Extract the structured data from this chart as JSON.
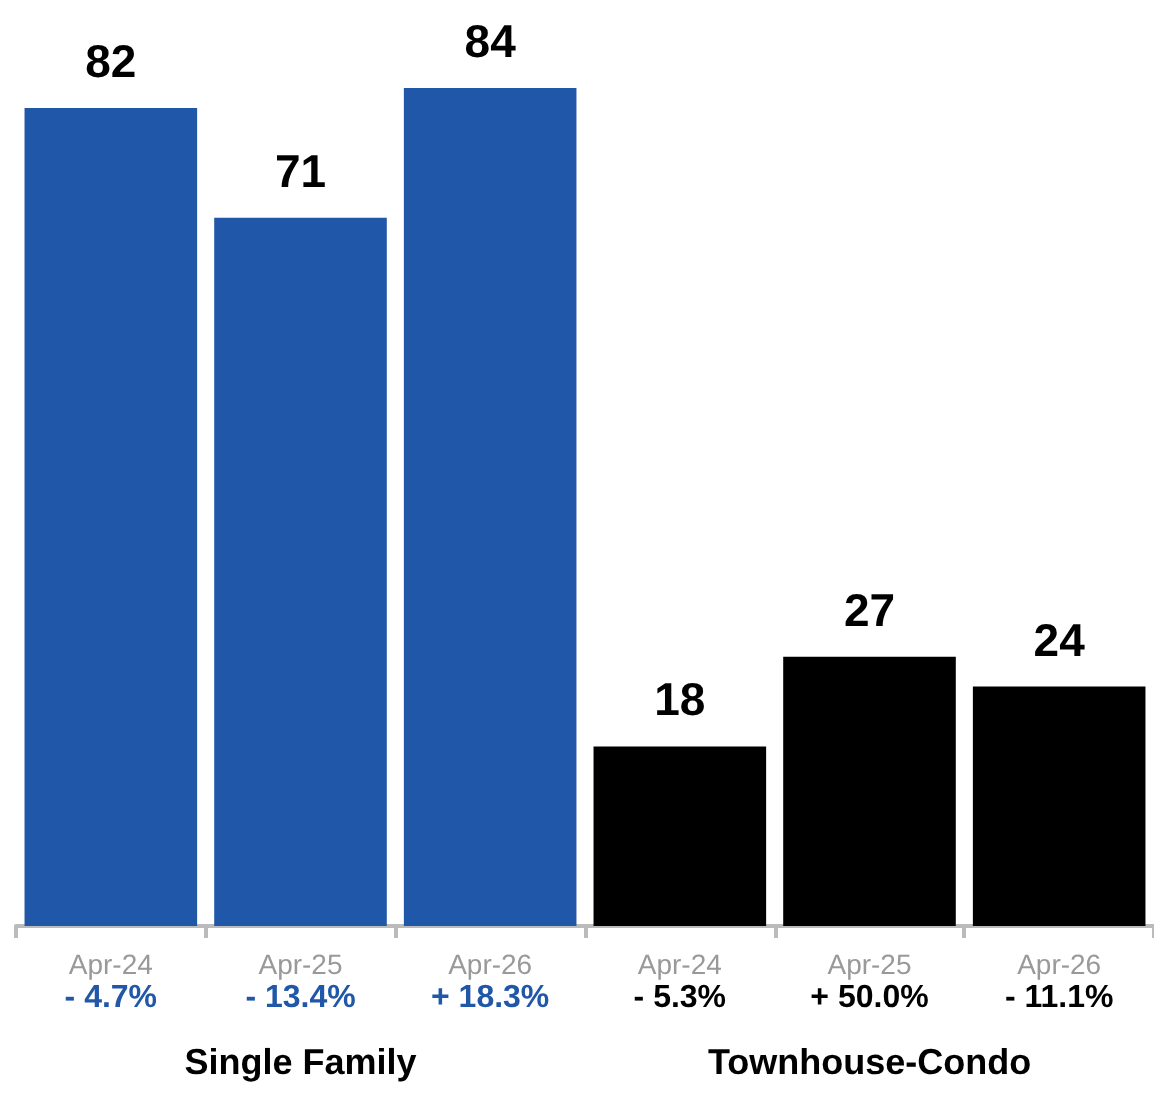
{
  "chart_data": {
    "type": "bar",
    "categories": [
      "Apr-24",
      "Apr-25",
      "Apr-26",
      "Apr-24",
      "Apr-25",
      "Apr-26"
    ],
    "values": [
      82,
      71,
      84,
      18,
      27,
      24
    ],
    "colors": [
      "#2157a8",
      "#2157a8",
      "#2157a8",
      "#000000",
      "#000000",
      "#000000"
    ],
    "data_labels": true,
    "annotations": [
      "- 4.7%",
      "- 13.4%",
      "+ 18.3%",
      "- 5.3%",
      "+ 50.0%",
      "- 11.1%",
      "Single Family",
      "Townhouse-Condo"
    ]
  }
}
